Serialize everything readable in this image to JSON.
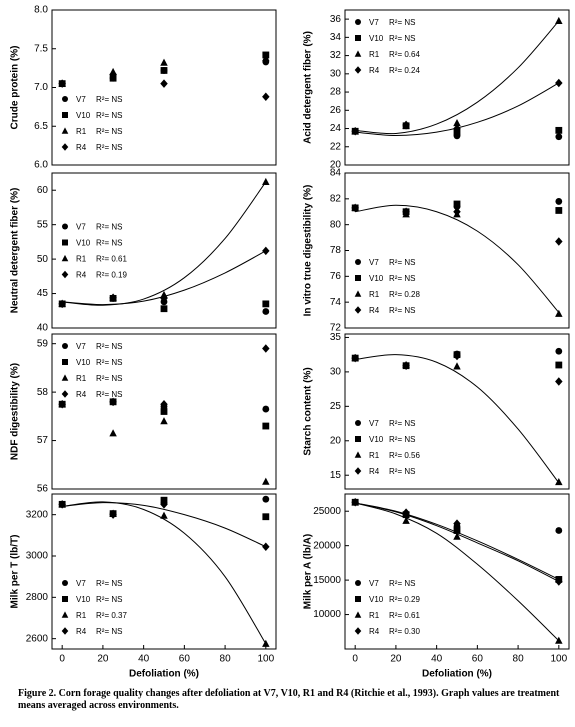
{
  "chart_data": [
    {
      "type": "scatter",
      "ylabel": "Crude protein (%)",
      "xlim": [
        -5,
        105
      ],
      "ylim": [
        6,
        8
      ],
      "yticks": [
        {
          "value": 6,
          "label": "6.0"
        },
        {
          "value": 6.5,
          "label": "6.5"
        },
        {
          "value": 7,
          "label": "7.0"
        },
        {
          "value": 7.5,
          "label": "7.5"
        },
        {
          "value": 8,
          "label": "8.0"
        }
      ],
      "legend": "lower left",
      "x": [
        0,
        25,
        50,
        100
      ],
      "series": [
        {
          "name": "V7",
          "r2_label": "R²= NS",
          "marker": "circle",
          "color": "#000000",
          "values": [
            7.05,
            7.12,
            7.22,
            7.33
          ]
        },
        {
          "name": "V10",
          "r2_label": "R²= NS",
          "marker": "square",
          "color": "#000000",
          "values": [
            7.05,
            7.12,
            7.22,
            7.42
          ]
        },
        {
          "name": "R1",
          "r2_label": "R²= NS",
          "marker": "triangle",
          "color": "#000000",
          "values": [
            7.05,
            7.2,
            7.32,
            7.38
          ]
        },
        {
          "name": "R4",
          "r2_label": "R²= NS",
          "marker": "diamond",
          "color": "#000000",
          "values": [
            7.05,
            7.17,
            7.05,
            6.88
          ]
        }
      ],
      "curves": []
    },
    {
      "type": "scatter",
      "ylabel": "Acid detergent fiber (%)",
      "xlim": [
        -5,
        105
      ],
      "ylim": [
        20,
        37
      ],
      "yticks": [
        20,
        22,
        24,
        26,
        28,
        30,
        32,
        34,
        36
      ],
      "legend": "upper left",
      "x": [
        0,
        25,
        50,
        100
      ],
      "series": [
        {
          "name": "V7",
          "r2_label": "R²= NS",
          "marker": "circle",
          "color": "#000000",
          "values": [
            23.7,
            24.3,
            23.2,
            23.1
          ]
        },
        {
          "name": "V10",
          "r2_label": "R²= NS",
          "marker": "square",
          "color": "#000000",
          "values": [
            23.7,
            24.3,
            23.6,
            23.8
          ]
        },
        {
          "name": "R1",
          "r2_label": "R²= 0.64",
          "marker": "triangle",
          "color": "#000000",
          "values": [
            23.7,
            24.3,
            24.6,
            35.8
          ]
        },
        {
          "name": "R4",
          "r2_label": "R²= 0.24",
          "marker": "diamond",
          "color": "#000000",
          "values": [
            23.7,
            24.4,
            24.0,
            29.0
          ]
        }
      ],
      "curves": [
        {
          "x": [
            0,
            20,
            40,
            60,
            80,
            100
          ],
          "values": [
            23.8,
            23.46,
            24.49,
            26.89,
            30.66,
            35.8
          ]
        },
        {
          "x": [
            0,
            20,
            40,
            60,
            80,
            100
          ],
          "values": [
            23.6,
            23.24,
            23.6,
            24.68,
            26.48,
            29.0
          ]
        }
      ]
    },
    {
      "type": "scatter",
      "ylabel": "Neutral detergent fiber (%)",
      "xlim": [
        -5,
        105
      ],
      "ylim": [
        40,
        62.5
      ],
      "yticks": [
        40,
        45,
        50,
        55,
        60
      ],
      "legend": "center left",
      "x": [
        0,
        25,
        50,
        100
      ],
      "series": [
        {
          "name": "V7",
          "r2_label": "R²= NS",
          "marker": "circle",
          "color": "#000000",
          "values": [
            43.5,
            44.3,
            43.8,
            42.4
          ]
        },
        {
          "name": "V10",
          "r2_label": "R²= NS",
          "marker": "square",
          "color": "#000000",
          "values": [
            43.5,
            44.3,
            42.8,
            43.5
          ]
        },
        {
          "name": "R1",
          "r2_label": "R²= 0.61",
          "marker": "triangle",
          "color": "#000000",
          "values": [
            43.5,
            44.4,
            44.8,
            61.2
          ]
        },
        {
          "name": "R4",
          "r2_label": "R²= 0.19",
          "marker": "diamond",
          "color": "#000000",
          "values": [
            43.5,
            44.4,
            44.3,
            51.2
          ]
        }
      ],
      "curves": [
        {
          "x": [
            0,
            20,
            40,
            60,
            80,
            100
          ],
          "values": [
            43.8,
            43.3,
            44.2,
            47.3,
            53.0,
            61.2
          ]
        },
        {
          "x": [
            0,
            20,
            40,
            60,
            80,
            100
          ],
          "values": [
            43.8,
            43.4,
            43.9,
            45.5,
            48.0,
            51.2
          ]
        }
      ]
    },
    {
      "type": "scatter",
      "ylabel": "In vitro true digestibility (%)",
      "xlim": [
        -5,
        105
      ],
      "ylim": [
        72,
        84
      ],
      "yticks": [
        72,
        74,
        76,
        78,
        80,
        82,
        84
      ],
      "legend": "lower left",
      "x": [
        0,
        25,
        50,
        100
      ],
      "series": [
        {
          "name": "V7",
          "r2_label": "R²= NS",
          "marker": "circle",
          "color": "#000000",
          "values": [
            81.3,
            81.0,
            81.4,
            81.8
          ]
        },
        {
          "name": "V10",
          "r2_label": "R²= NS",
          "marker": "square",
          "color": "#000000",
          "values": [
            81.3,
            81.0,
            81.6,
            81.1
          ]
        },
        {
          "name": "R1",
          "r2_label": "R²= 0.28",
          "marker": "triangle",
          "color": "#000000",
          "values": [
            81.3,
            80.8,
            80.8,
            73.1
          ]
        },
        {
          "name": "R4",
          "r2_label": "R²= NS",
          "marker": "diamond",
          "color": "#000000",
          "values": [
            81.3,
            81.0,
            81.0,
            78.7
          ]
        }
      ],
      "curves": [
        {
          "x": [
            0,
            20,
            40,
            60,
            80,
            100
          ],
          "values": [
            81.0,
            81.5,
            81.0,
            79.5,
            76.9,
            73.2
          ]
        }
      ]
    },
    {
      "type": "scatter",
      "ylabel": "NDF digestibility (%)",
      "xlim": [
        -5,
        105
      ],
      "ylim": [
        56,
        59.2
      ],
      "yticks": [
        56,
        57,
        58,
        59
      ],
      "legend": "upper left",
      "x": [
        0,
        25,
        50,
        100
      ],
      "series": [
        {
          "name": "V7",
          "r2_label": "R²= NS",
          "marker": "circle",
          "color": "#000000",
          "values": [
            57.75,
            57.8,
            57.7,
            57.65
          ]
        },
        {
          "name": "V10",
          "r2_label": "R²= NS",
          "marker": "square",
          "color": "#000000",
          "values": [
            57.75,
            57.8,
            57.6,
            57.3
          ]
        },
        {
          "name": "R1",
          "r2_label": "R²= NS",
          "marker": "triangle",
          "color": "#000000",
          "values": [
            57.75,
            57.15,
            57.4,
            56.15
          ]
        },
        {
          "name": "R4",
          "r2_label": "R²= NS",
          "marker": "diamond",
          "color": "#000000",
          "values": [
            57.75,
            57.8,
            57.75,
            58.9
          ]
        }
      ],
      "curves": []
    },
    {
      "type": "scatter",
      "ylabel": "Starch content (%)",
      "xlim": [
        -5,
        105
      ],
      "ylim": [
        13,
        35.5
      ],
      "yticks": [
        15,
        20,
        25,
        30,
        35
      ],
      "legend": "lower left",
      "x": [
        0,
        25,
        50,
        100
      ],
      "series": [
        {
          "name": "V7",
          "r2_label": "R²= NS",
          "marker": "circle",
          "color": "#000000",
          "values": [
            32.0,
            30.9,
            32.6,
            33.0
          ]
        },
        {
          "name": "V10",
          "r2_label": "R²= NS",
          "marker": "square",
          "color": "#000000",
          "values": [
            32.0,
            30.9,
            32.5,
            31.0
          ]
        },
        {
          "name": "R1",
          "r2_label": "R²= 0.56",
          "marker": "triangle",
          "color": "#000000",
          "values": [
            32.0,
            31.0,
            30.8,
            14.0
          ]
        },
        {
          "name": "R4",
          "r2_label": "R²= NS",
          "marker": "diamond",
          "color": "#000000",
          "values": [
            32.0,
            30.9,
            32.3,
            28.6
          ]
        }
      ],
      "curves": [
        {
          "x": [
            0,
            20,
            40,
            60,
            80,
            100
          ],
          "values": [
            31.8,
            32.5,
            31.4,
            27.8,
            21.7,
            13.9
          ]
        }
      ]
    },
    {
      "type": "scatter",
      "ylabel": "Milk per T (lb/T)",
      "xlabel": "Defoliation (%)",
      "xlim": [
        -5,
        105
      ],
      "xticks": [
        0,
        20,
        40,
        60,
        80,
        100
      ],
      "ylim": [
        2550,
        3300
      ],
      "yticks": [
        2600,
        2800,
        3000,
        3200
      ],
      "legend": "lower left",
      "x": [
        0,
        25,
        50,
        100
      ],
      "series": [
        {
          "name": "V7",
          "r2_label": "R²= NS",
          "marker": "circle",
          "color": "#000000",
          "values": [
            3250,
            3205,
            3255,
            3275
          ]
        },
        {
          "name": "V10",
          "r2_label": "R²= NS",
          "marker": "square",
          "color": "#000000",
          "values": [
            3250,
            3205,
            3270,
            3190
          ]
        },
        {
          "name": "R1",
          "r2_label": "R²= 0.37",
          "marker": "triangle",
          "color": "#000000",
          "values": [
            3250,
            3205,
            3195,
            2575
          ]
        },
        {
          "name": "R4",
          "r2_label": "R²= NS",
          "marker": "diamond",
          "color": "#000000",
          "values": [
            3250,
            3200,
            3250,
            3045
          ]
        }
      ],
      "curves": [
        {
          "x": [
            0,
            20,
            40,
            60,
            80,
            100
          ],
          "values": [
            3240,
            3258,
            3245,
            3200,
            3135,
            3045
          ]
        },
        {
          "x": [
            0,
            20,
            40,
            60,
            80,
            100
          ],
          "values": [
            3240,
            3262,
            3225,
            3110,
            2900,
            2575
          ]
        }
      ]
    },
    {
      "type": "scatter",
      "ylabel": "Milk per A (lb/A)",
      "xlabel": "Defoliation (%)",
      "xlim": [
        -5,
        105
      ],
      "xticks": [
        0,
        20,
        40,
        60,
        80,
        100
      ],
      "ylim": [
        5000,
        27500
      ],
      "yticks": [
        10000,
        15000,
        20000,
        25000
      ],
      "legend": "lower left",
      "x": [
        0,
        25,
        50,
        100
      ],
      "series": [
        {
          "name": "V7",
          "r2_label": "R²= NS",
          "marker": "circle",
          "color": "#000000",
          "values": [
            26300,
            24500,
            22800,
            22200
          ]
        },
        {
          "name": "V10",
          "r2_label": "R²= 0.29",
          "marker": "square",
          "color": "#000000",
          "values": [
            26300,
            24500,
            22200,
            15100
          ]
        },
        {
          "name": "R1",
          "r2_label": "R²= 0.61",
          "marker": "triangle",
          "color": "#000000",
          "values": [
            26300,
            23600,
            21300,
            6200
          ]
        },
        {
          "name": "R4",
          "r2_label": "R²= 0.30",
          "marker": "diamond",
          "color": "#000000",
          "values": [
            26300,
            24800,
            23200,
            14800
          ]
        }
      ],
      "curves": [
        {
          "x": [
            0,
            20,
            40,
            60,
            80,
            100
          ],
          "values": [
            26200,
            25000,
            23100,
            20700,
            18000,
            15100
          ]
        },
        {
          "x": [
            0,
            20,
            40,
            60,
            80,
            100
          ],
          "values": [
            26200,
            24900,
            22900,
            20400,
            17800,
            14800
          ]
        },
        {
          "x": [
            0,
            20,
            40,
            60,
            80,
            100
          ],
          "values": [
            26200,
            24600,
            21800,
            17300,
            12000,
            6200
          ]
        }
      ]
    }
  ],
  "caption": "Figure 2. Corn forage quality changes after defoliation at V7, V10, R1 and R4 (Ritchie et al., 1993). Graph values are treatment means averaged across environments."
}
